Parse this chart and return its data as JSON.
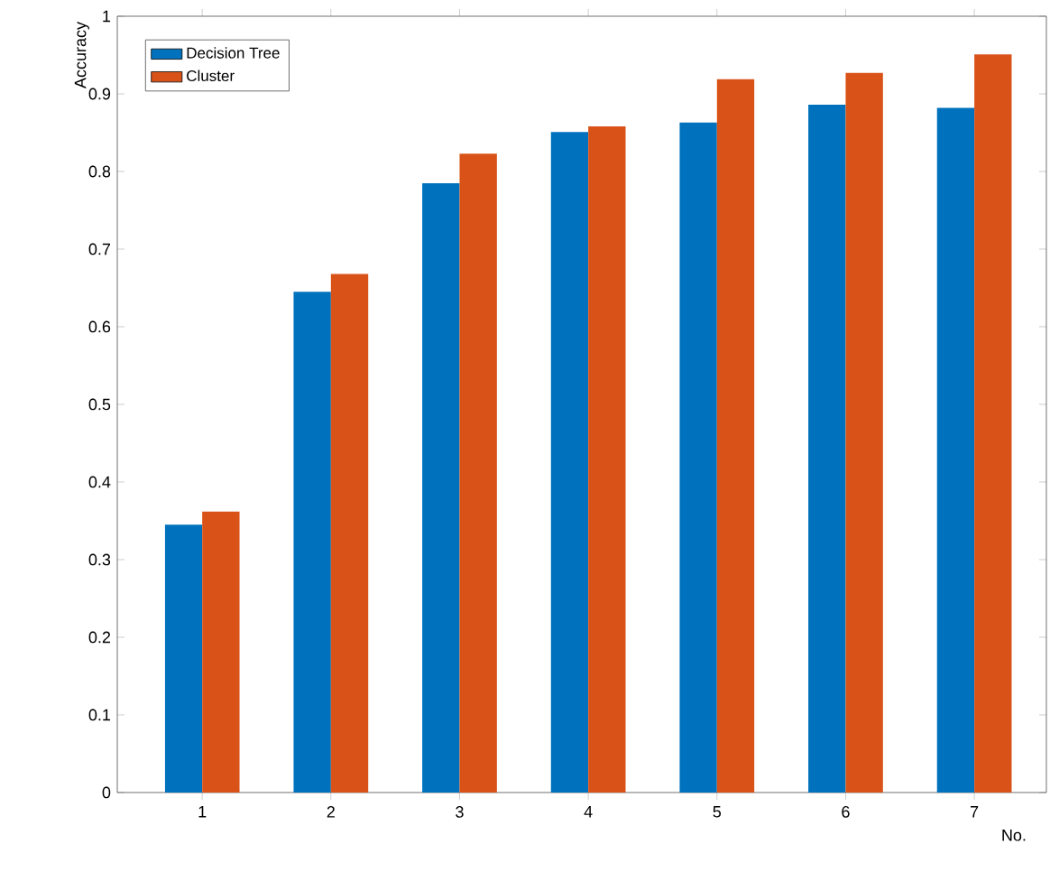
{
  "chart_data": {
    "type": "bar",
    "xlabel": "No.",
    "ylabel": "Accuracy",
    "categories": [
      "1",
      "2",
      "3",
      "4",
      "5",
      "6",
      "7"
    ],
    "series": [
      {
        "name": "Decision Tree",
        "color": "#0072bd",
        "values": [
          0.345,
          0.645,
          0.785,
          0.851,
          0.863,
          0.886,
          0.882
        ]
      },
      {
        "name": "Cluster",
        "color": "#d95319",
        "values": [
          0.362,
          0.668,
          0.823,
          0.858,
          0.919,
          0.927,
          0.951
        ]
      }
    ],
    "ylim": [
      0,
      1
    ],
    "yticks": [
      0,
      0.1,
      0.2,
      0.3,
      0.4,
      0.5,
      0.6,
      0.7,
      0.8,
      0.9,
      1
    ],
    "legend": "top left",
    "grid": false
  }
}
